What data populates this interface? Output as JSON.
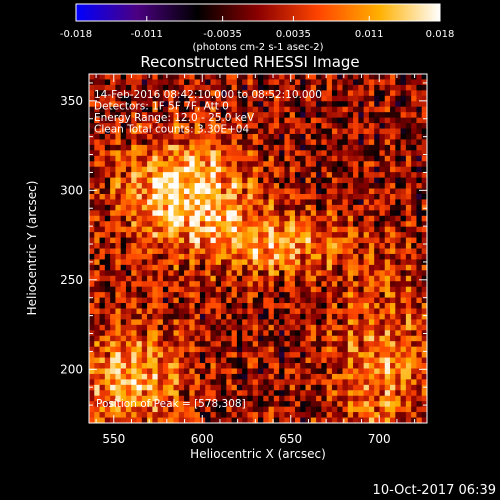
{
  "chart_data": {
    "type": "heatmap",
    "title": "Reconstructed RHESSI Image",
    "xlabel": "Heliocentric X (arcsec)",
    "ylabel": "Heliocentric Y (arcsec)",
    "xlim": [
      536,
      727
    ],
    "ylim": [
      170,
      365
    ],
    "x_ticks": [
      550,
      600,
      650,
      700
    ],
    "y_ticks": [
      200,
      250,
      300,
      350
    ],
    "grid": false,
    "colorbar": {
      "position": "top",
      "min": -0.018,
      "max": 0.018,
      "tick_values": [
        -0.018,
        -0.011,
        -0.0035,
        0.0035,
        0.011,
        0.018
      ],
      "tick_labels": [
        "-0.018",
        "-0.011",
        "-0.0035",
        "0.0035",
        "0.011",
        "0.018"
      ],
      "units_label": "(photons cm-2 s-1 asec-2)",
      "colors": [
        "#0000ff",
        "#4b0082",
        "#000000",
        "#8b0000",
        "#ff4500",
        "#ffb000",
        "#ffffff"
      ]
    },
    "info_lines": [
      "14-Feb-2016 08:42:10.000 to 08:52:10.000",
      "Detectors: 1F 5F 7F, Att 0",
      "Energy Range: 12.0 - 25.0 keV",
      "Clean     Total counts: 3.30E+04"
    ],
    "peak_annotation": "Position of Peak = [578,308]",
    "peak_position": [
      578,
      308
    ],
    "grid_cells": [
      64,
      64
    ],
    "emission_sources": [
      {
        "x": 590,
        "y": 300,
        "sx": 25,
        "sy": 20,
        "amp": 0.016
      },
      {
        "x": 640,
        "y": 270,
        "sx": 30,
        "sy": 12,
        "amp": 0.011
      },
      {
        "x": 560,
        "y": 195,
        "sx": 20,
        "sy": 20,
        "amp": 0.012
      },
      {
        "x": 700,
        "y": 200,
        "sx": 20,
        "sy": 35,
        "amp": 0.009
      }
    ]
  },
  "timestamp": "10-Oct-2017 06:39"
}
